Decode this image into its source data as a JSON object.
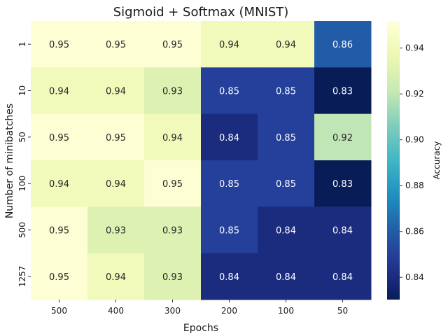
{
  "chart_data": {
    "type": "heatmap",
    "title": "Sigmoid + Softmax (MNIST)",
    "xlabel": "Epochs",
    "ylabel": "Number of minibatches",
    "x_categories": [
      "500",
      "400",
      "300",
      "200",
      "100",
      "50"
    ],
    "y_categories": [
      "1",
      "10",
      "50",
      "100",
      "500",
      "1257"
    ],
    "values": [
      [
        0.95,
        0.95,
        0.95,
        0.94,
        0.94,
        0.86
      ],
      [
        0.94,
        0.94,
        0.93,
        0.85,
        0.85,
        0.83
      ],
      [
        0.95,
        0.95,
        0.94,
        0.84,
        0.85,
        0.92
      ],
      [
        0.94,
        0.94,
        0.95,
        0.85,
        0.85,
        0.83
      ],
      [
        0.95,
        0.93,
        0.93,
        0.85,
        0.84,
        0.84
      ],
      [
        0.95,
        0.94,
        0.93,
        0.84,
        0.84,
        0.84
      ]
    ],
    "cell_labels": [
      [
        "0.95",
        "0.95",
        "0.95",
        "0.94",
        "0.94",
        "0.86"
      ],
      [
        "0.94",
        "0.94",
        "0.93",
        "0.85",
        "0.85",
        "0.83"
      ],
      [
        "0.95",
        "0.95",
        "0.94",
        "0.84",
        "0.85",
        "0.92"
      ],
      [
        "0.94",
        "0.94",
        "0.95",
        "0.85",
        "0.85",
        "0.83"
      ],
      [
        "0.95",
        "0.93",
        "0.93",
        "0.85",
        "0.84",
        "0.84"
      ],
      [
        "0.95",
        "0.94",
        "0.93",
        "0.84",
        "0.84",
        "0.84"
      ]
    ],
    "colorbar": {
      "label": "Accuracy",
      "colormap": "YlGnBu",
      "vmin": 0.8303,
      "vmax": 0.9518,
      "ticks": [
        0.84,
        0.86,
        0.88,
        0.9,
        0.92,
        0.94
      ],
      "tick_labels": [
        "0.84",
        "0.86",
        "0.88",
        "0.90",
        "0.92",
        "0.94"
      ]
    },
    "grid": false
  }
}
